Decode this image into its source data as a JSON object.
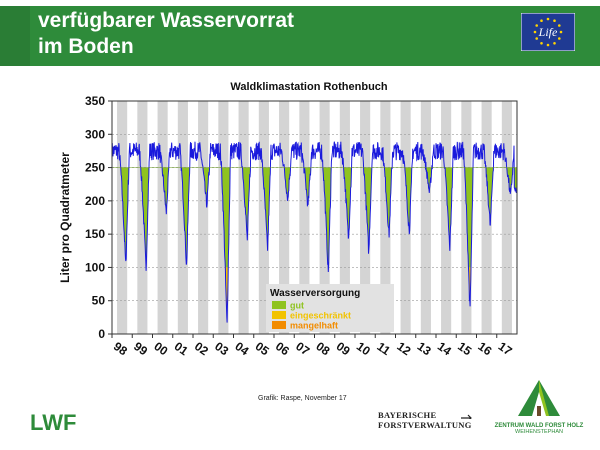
{
  "header": {
    "title_line1": "verfügbarer Wasservorrat",
    "title_line2": "im Boden",
    "bg_color": "#2e8b3a"
  },
  "eu_logo": {
    "icon": "eu-life-logo",
    "text": "Life"
  },
  "footer": {
    "caption": "Grafik: Raspe, November 17",
    "lwf_logo": "LWF",
    "bf_line1": "BAYERISCHE",
    "bf_line2": "FORSTVERWALTUNG",
    "zwfh_line1": "ZENTRUM WALD FORST HOLZ",
    "zwfh_line2": "WEIHENSTEPHAN"
  },
  "chart_data": {
    "type": "line",
    "title": "Waldklimastation Rothenbuch",
    "ylabel": "Liter pro Quadratmeter",
    "xlabel": "",
    "ylim": [
      0,
      350
    ],
    "yticks": [
      0,
      50,
      100,
      150,
      200,
      250,
      300,
      350
    ],
    "categories": [
      "98",
      "99",
      "00",
      "01",
      "02",
      "03",
      "04",
      "05",
      "06",
      "07",
      "08",
      "09",
      "10",
      "11",
      "12",
      "13",
      "14",
      "15",
      "16",
      "17"
    ],
    "threshold_good": 250,
    "threshold_limited": 100,
    "threshold_poor": 50,
    "shading": "alternating grey half-year bands (growing seasons)",
    "colors": {
      "line": "#1a1adc",
      "gut": "#8fc31f",
      "eingeschraenkt": "#f2c300",
      "mangelhaft": "#f28c00",
      "band": "#d4d4d4"
    },
    "legend": {
      "title": "Wasserversorgung",
      "items": [
        "gut",
        "eingeschränkt",
        "mangelhaft"
      ],
      "placement": "bottom-center"
    },
    "annual_minima": [
      {
        "year": "98",
        "min": 100
      },
      {
        "year": "99",
        "min": 95
      },
      {
        "year": "00",
        "min": 180
      },
      {
        "year": "01",
        "min": 100
      },
      {
        "year": "02",
        "min": 190
      },
      {
        "year": "03",
        "min": 8
      },
      {
        "year": "04",
        "min": 140
      },
      {
        "year": "05",
        "min": 125
      },
      {
        "year": "06",
        "min": 200
      },
      {
        "year": "07",
        "min": 190
      },
      {
        "year": "08",
        "min": 90
      },
      {
        "year": "09",
        "min": 140
      },
      {
        "year": "10",
        "min": 120
      },
      {
        "year": "11",
        "min": 145
      },
      {
        "year": "12",
        "min": 150
      },
      {
        "year": "13",
        "min": 210
      },
      {
        "year": "14",
        "min": 125
      },
      {
        "year": "15",
        "min": 30
      },
      {
        "year": "16",
        "min": 160
      },
      {
        "year": "17",
        "min": 205
      }
    ]
  }
}
